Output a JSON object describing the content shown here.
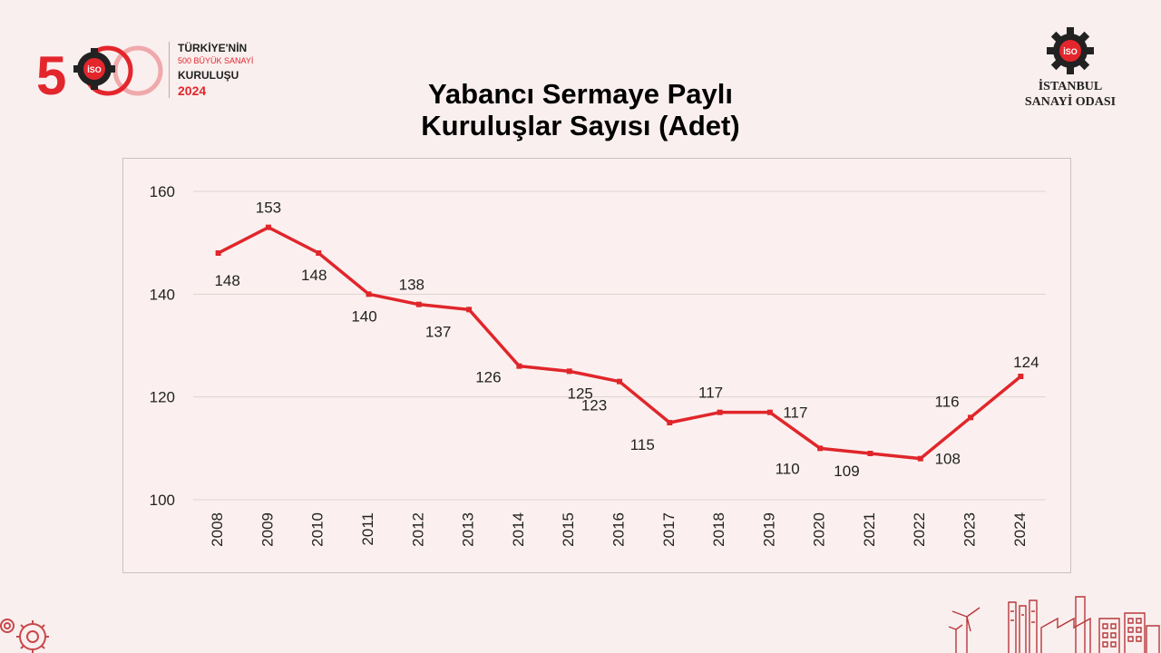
{
  "logo_left": {
    "line1": "TÜRKİYE'NİN",
    "line2": "500 BÜYÜK SANAYİ",
    "line3": "KURULUŞU",
    "year": "2024",
    "mark_text": "500",
    "badge_text": "İSO"
  },
  "logo_right": {
    "badge_text": "İSO",
    "name_line1": "İSTANBUL",
    "name_line2": "SANAYİ ODASI"
  },
  "colors": {
    "background": "#f9efee",
    "series": "#e0262b",
    "brand_red": "#e3262c",
    "grid": "#dcd4d3"
  },
  "chart_data": {
    "type": "line",
    "title": [
      "Yabancı Sermaye Paylı",
      "Kuruluşlar Sayısı (Adet)"
    ],
    "xlabel": "",
    "ylabel": "",
    "ylim": [
      100,
      160
    ],
    "yticks": [
      "100",
      "120",
      "140",
      "160"
    ],
    "grid": true,
    "legend": "none",
    "x": [
      "2008",
      "2009",
      "2010",
      "2011",
      "2012",
      "2013",
      "2014",
      "2015",
      "2016",
      "2017",
      "2018",
      "2019",
      "2020",
      "2021",
      "2022",
      "2023",
      "2024"
    ],
    "series": [
      {
        "values": [
          148,
          153,
          148,
          140,
          138,
          137,
          126,
          125,
          123,
          115,
          117,
          117,
          110,
          109,
          108,
          116,
          124
        ],
        "labels": [
          "148",
          "153",
          "148",
          "140",
          "138",
          "137",
          "126",
          "125",
          "123",
          "115",
          "117",
          "117",
          "110",
          "109",
          "108",
          "116",
          "124"
        ]
      }
    ]
  }
}
